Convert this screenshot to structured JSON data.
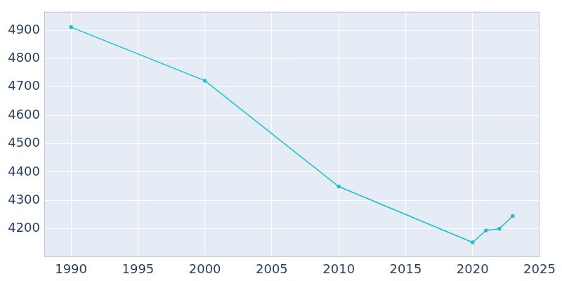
{
  "chart_data": {
    "type": "line",
    "x": [
      1990,
      2000,
      2010,
      2020,
      2021,
      2022,
      2023
    ],
    "values": [
      4911,
      4722,
      4349,
      4152,
      4194,
      4200,
      4245
    ],
    "color": "#17c3cc",
    "marker": "circle",
    "xlim": [
      1988,
      2025
    ],
    "xticks": [
      1990,
      1995,
      2000,
      2005,
      2010,
      2015,
      2020,
      2025
    ],
    "ylim": [
      4100,
      4965
    ],
    "yticks": [
      4200,
      4300,
      4400,
      4500,
      4600,
      4700,
      4800,
      4900
    ],
    "grid": true
  }
}
